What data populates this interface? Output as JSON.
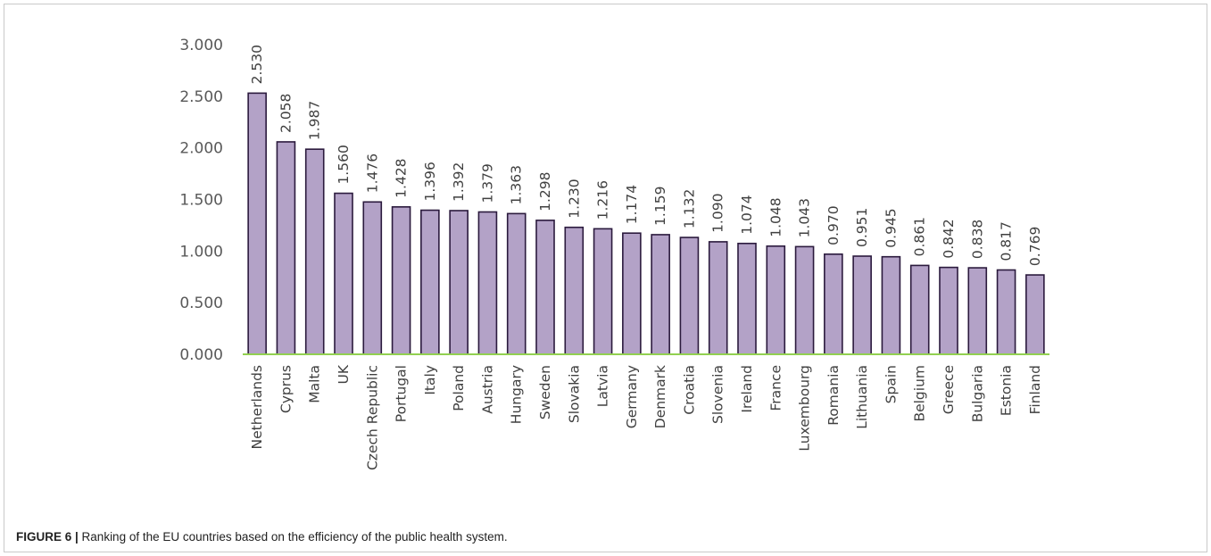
{
  "caption": {
    "label": "FIGURE 6 |",
    "text": " Ranking of the EU countries based on the efficiency of the public health system."
  },
  "chart_data": {
    "type": "bar",
    "title": "",
    "xlabel": "",
    "ylabel": "",
    "ylim": [
      0,
      3
    ],
    "yticks": [
      {
        "value": 0,
        "label": "0.000"
      },
      {
        "value": 0.5,
        "label": "0.500"
      },
      {
        "value": 1,
        "label": "1.000"
      },
      {
        "value": 1.5,
        "label": "1.500"
      },
      {
        "value": 2,
        "label": "2.000"
      },
      {
        "value": 2.5,
        "label": "2.500"
      },
      {
        "value": 3,
        "label": "3.000"
      }
    ],
    "grid": false,
    "legend": "none",
    "colors": {
      "bar_fill": "#b3a2c7",
      "bar_stroke": "#2b1a3d",
      "axis_line": "#92d050"
    },
    "categories": [
      "Netherlands",
      "Cyprus",
      "Malta",
      "UK",
      "Czech Republic",
      "Portugal",
      "Italy",
      "Poland",
      "Austria",
      "Hungary",
      "Sweden",
      "Slovakia",
      "Latvia",
      "Germany",
      "Denmark",
      "Croatia",
      "Slovenia",
      "Ireland",
      "France",
      "Luxembourg",
      "Romania",
      "Lithuania",
      "Spain",
      "Belgium",
      "Greece",
      "Bulgaria",
      "Estonia",
      "Finland"
    ],
    "values": [
      2.53,
      2.058,
      1.987,
      1.56,
      1.476,
      1.428,
      1.396,
      1.392,
      1.379,
      1.363,
      1.298,
      1.23,
      1.216,
      1.174,
      1.159,
      1.132,
      1.09,
      1.074,
      1.048,
      1.043,
      0.97,
      0.951,
      0.945,
      0.861,
      0.842,
      0.838,
      0.817,
      0.769
    ],
    "data_labels": [
      "2.530",
      "2.058",
      "1.987",
      "1.560",
      "1.476",
      "1.428",
      "1.396",
      "1.392",
      "1.379",
      "1.363",
      "1.298",
      "1.230",
      "1.216",
      "1.174",
      "1.159",
      "1.132",
      "1.090",
      "1.074",
      "1.048",
      "1.043",
      "0.970",
      "0.951",
      "0.945",
      "0.861",
      "0.842",
      "0.838",
      "0.817",
      "0.769"
    ]
  }
}
